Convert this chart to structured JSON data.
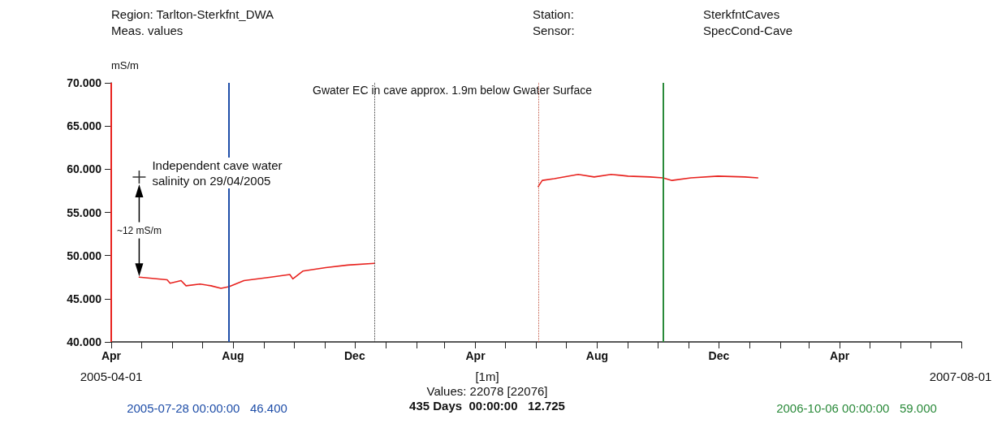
{
  "chart_data": {
    "type": "line",
    "title": "Region: Tarlton-Sterkfnt_DWA",
    "subtitle": "Meas. values",
    "ylabel": "mS/m",
    "annotations": [
      "Station:",
      "SterkfntCaves",
      "Sensor:",
      "SpecCond-Cave",
      "Gwater EC in cave approx. 1.9m below Gwater Surface",
      "2005-04-01",
      "2007-08-01",
      "[1m]",
      "Values: 22078 [22076]",
      "435 Days  00:00:00   12.725",
      "2005-07-28 00:00:00   46.400",
      "2006-10-06 00:00:00   59.000",
      "~12 mS/m",
      {
        "text": "Independent cave water salinity on 29/04/2005",
        "x": "2005-04-29",
        "y": 59.1
      }
    ],
    "xlim": [
      "2005-04-01",
      "2007-08-01"
    ],
    "xticks": [
      {
        "value": "2005-04-01",
        "label": "Apr"
      },
      {
        "value": "2005-05-01",
        "label": null
      },
      {
        "value": "2005-06-01",
        "label": null
      },
      {
        "value": "2005-07-01",
        "label": null
      },
      {
        "value": "2005-08-01",
        "label": "Aug"
      },
      {
        "value": "2005-09-01",
        "label": null
      },
      {
        "value": "2005-10-01",
        "label": null
      },
      {
        "value": "2005-11-01",
        "label": null
      },
      {
        "value": "2005-12-01",
        "label": "Dec"
      },
      {
        "value": "2006-01-01",
        "label": null
      },
      {
        "value": "2006-02-01",
        "label": null
      },
      {
        "value": "2006-03-01",
        "label": null
      },
      {
        "value": "2006-04-01",
        "label": "Apr"
      },
      {
        "value": "2006-05-01",
        "label": null
      },
      {
        "value": "2006-06-01",
        "label": null
      },
      {
        "value": "2006-07-01",
        "label": null
      },
      {
        "value": "2006-08-01",
        "label": "Aug"
      },
      {
        "value": "2006-09-01",
        "label": null
      },
      {
        "value": "2006-10-01",
        "label": null
      },
      {
        "value": "2006-11-01",
        "label": null
      },
      {
        "value": "2006-12-01",
        "label": "Dec"
      },
      {
        "value": "2007-01-01",
        "label": null
      },
      {
        "value": "2007-02-01",
        "label": null
      },
      {
        "value": "2007-03-01",
        "label": null
      },
      {
        "value": "2007-04-01",
        "label": "Apr"
      },
      {
        "value": "2007-05-01",
        "label": null
      },
      {
        "value": "2007-06-01",
        "label": null
      },
      {
        "value": "2007-07-01",
        "label": null
      },
      {
        "value": "2007-08-01",
        "label": null
      }
    ],
    "ylim": [
      40,
      70
    ],
    "yticks": [
      {
        "value": 40,
        "label": "40.000"
      },
      {
        "value": 45,
        "label": "45.000"
      },
      {
        "value": 50,
        "label": "50.000"
      },
      {
        "value": 55,
        "label": "55.000"
      },
      {
        "value": 60,
        "label": "60.000"
      },
      {
        "value": 65,
        "label": "65.000"
      },
      {
        "value": 70,
        "label": "70.000"
      }
    ],
    "grid": false,
    "marker": "none",
    "line_style": "solid",
    "series": [
      {
        "color": "#e8231f",
        "x": [
          "2005-04-29",
          "2005-05-27",
          "2005-05-30",
          "2005-06-10",
          "2005-06-15",
          "2005-06-29",
          "2005-07-10",
          "2005-07-20",
          "2005-07-28",
          "2005-08-12",
          "2005-09-08",
          "2005-09-27",
          "2005-09-30",
          "2005-10-10",
          "2005-11-02",
          "2005-11-24",
          "2005-12-21"
        ],
        "values": [
          47.5,
          47.2,
          46.8,
          47.1,
          46.5,
          46.7,
          46.5,
          46.2,
          46.4,
          47.1,
          47.5,
          47.8,
          47.3,
          48.2,
          48.6,
          48.9,
          49.1
        ]
      },
      {
        "color": "#e8231f",
        "x": [
          "2006-06-03",
          "2006-06-07",
          "2006-06-19",
          "2006-07-13",
          "2006-07-29",
          "2006-08-15",
          "2006-09-01",
          "2006-09-23",
          "2006-10-06",
          "2006-10-15",
          "2006-11-03",
          "2006-11-30",
          "2006-12-27",
          "2007-01-09"
        ],
        "values": [
          58.0,
          58.7,
          58.9,
          59.4,
          59.1,
          59.4,
          59.2,
          59.1,
          59.0,
          58.7,
          59.0,
          59.2,
          59.1,
          59.0
        ]
      },
      {
        "type": "scatter",
        "marker": "cross",
        "color": "#000000",
        "x": [
          "2005-04-29"
        ],
        "values": [
          59.1
        ]
      }
    ],
    "ref_lines": [
      {
        "axis": "x",
        "value": "2005-04-01",
        "color": "#e8231f"
      },
      {
        "axis": "x",
        "value": "2005-07-28",
        "color": "#1f4ea8"
      },
      {
        "axis": "x",
        "value": "2005-12-21",
        "line_style": "dotted",
        "color": "#333333"
      },
      {
        "axis": "x",
        "value": "2006-06-03",
        "line_style": "dotted",
        "color": "#c0503c"
      },
      {
        "axis": "x",
        "value": "2006-10-06",
        "color": "#2a8a3a"
      }
    ]
  }
}
